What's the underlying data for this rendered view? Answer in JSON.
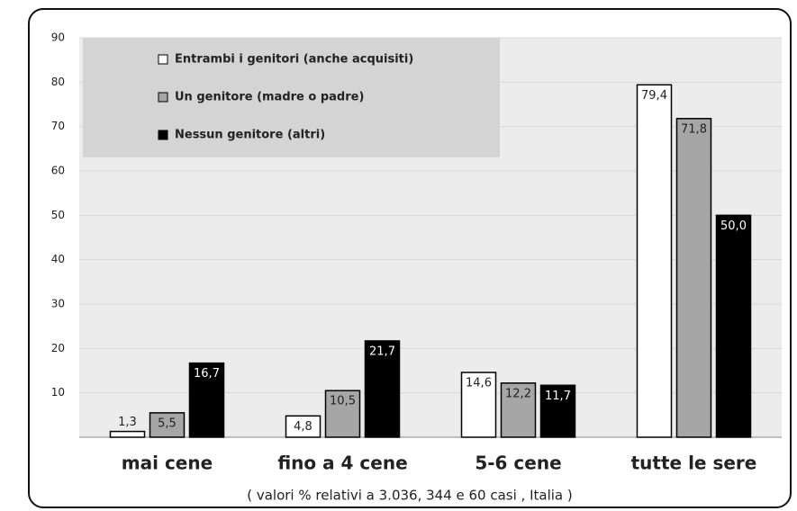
{
  "chart_data": {
    "type": "bar",
    "note": "( valori % relativi a 3.036, 344 e 60 casi , Italia )",
    "categories": [
      "mai cene",
      "fino a 4 cene",
      "5-6 cene",
      "tutte le sere"
    ],
    "series": [
      {
        "name": "Entrambi i genitori (anche acquisiti)",
        "color": "#ffffff",
        "values": [
          1.3,
          4.8,
          14.6,
          79.4
        ],
        "value_labels": [
          "1,3",
          "4,8",
          "14,6",
          "79,4"
        ]
      },
      {
        "name": "Un genitore (madre o padre)",
        "color": "#a6a6a6",
        "values": [
          5.5,
          10.5,
          12.2,
          71.8
        ],
        "value_labels": [
          "5,5",
          "10,5",
          "12,2",
          "71,8"
        ]
      },
      {
        "name": "Nessun genitore (altri)",
        "color": "#000000",
        "values": [
          16.7,
          21.7,
          11.7,
          50.0
        ],
        "value_labels": [
          "16,7",
          "21,7",
          "11,7",
          "50,0"
        ]
      }
    ],
    "ylim": [
      0,
      90
    ],
    "yticks": [
      10,
      20,
      30,
      40,
      50,
      60,
      70,
      80,
      90
    ],
    "grid": true
  }
}
